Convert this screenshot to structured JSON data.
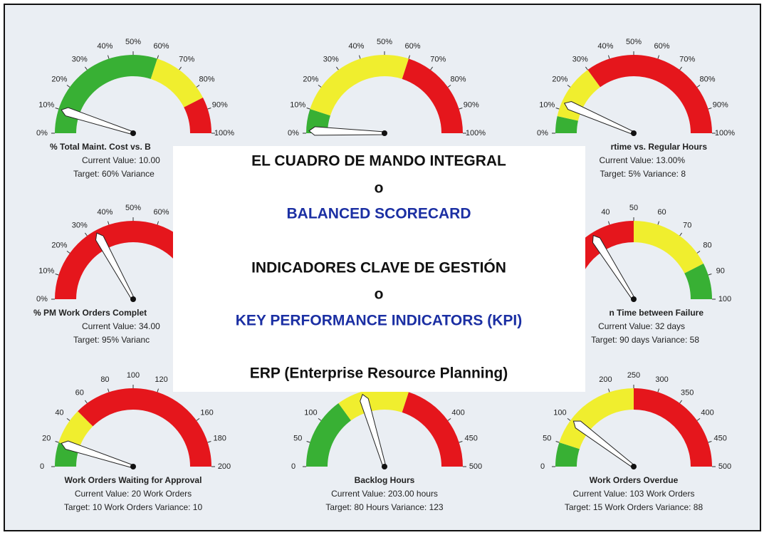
{
  "chart_data": [
    {
      "type": "gauge",
      "lim": [
        0,
        100
      ],
      "ticks": [
        {
          "value": 0,
          "label": "0%"
        },
        {
          "value": 10,
          "label": "10%"
        },
        {
          "value": 20,
          "label": "20%"
        },
        {
          "value": 30,
          "label": "30%"
        },
        {
          "value": 40,
          "label": "40%"
        },
        {
          "value": 50,
          "label": "50%"
        },
        {
          "value": 60,
          "label": "60%"
        },
        {
          "value": 70,
          "label": "70%"
        },
        {
          "value": 80,
          "label": "80%"
        },
        {
          "value": 90,
          "label": "90%"
        },
        {
          "value": 100,
          "label": "100%"
        }
      ],
      "bands": [
        {
          "from": 0,
          "to": 60,
          "color": "#38b034"
        },
        {
          "from": 60,
          "to": 85,
          "color": "#f0ee2e"
        },
        {
          "from": 85,
          "to": 100,
          "color": "#e5161c"
        }
      ],
      "value": 10,
      "captions": [
        "% Total Maint. Cost vs. B",
        "Current Value: 10.00",
        "Target: 60%  Variance"
      ]
    },
    {
      "type": "gauge",
      "lim": [
        0,
        100
      ],
      "ticks": [
        {
          "value": 0,
          "label": "0%"
        },
        {
          "value": 10,
          "label": "10%"
        },
        {
          "value": 20,
          "label": "20%"
        },
        {
          "value": 30,
          "label": "30%"
        },
        {
          "value": 40,
          "label": "40%"
        },
        {
          "value": 50,
          "label": "50%"
        },
        {
          "value": 60,
          "label": "60%"
        },
        {
          "value": 70,
          "label": "70%"
        },
        {
          "value": 80,
          "label": "80%"
        },
        {
          "value": 90,
          "label": "90%"
        },
        {
          "value": 100,
          "label": "100%"
        }
      ],
      "bands": [
        {
          "from": 0,
          "to": 10,
          "color": "#38b034"
        },
        {
          "from": 10,
          "to": 60,
          "color": "#f0ee2e"
        },
        {
          "from": 60,
          "to": 100,
          "color": "#e5161c"
        }
      ],
      "value": 1,
      "captions": []
    },
    {
      "type": "gauge",
      "lim": [
        0,
        100
      ],
      "ticks": [
        {
          "value": 0,
          "label": "0%"
        },
        {
          "value": 10,
          "label": "10%"
        },
        {
          "value": 20,
          "label": "20%"
        },
        {
          "value": 30,
          "label": "30%"
        },
        {
          "value": 40,
          "label": "40%"
        },
        {
          "value": 50,
          "label": "50%"
        },
        {
          "value": 60,
          "label": "60%"
        },
        {
          "value": 70,
          "label": "70%"
        },
        {
          "value": 80,
          "label": "80%"
        },
        {
          "value": 90,
          "label": "90%"
        },
        {
          "value": 100,
          "label": "100%"
        }
      ],
      "bands": [
        {
          "from": 0,
          "to": 7,
          "color": "#38b034"
        },
        {
          "from": 7,
          "to": 30,
          "color": "#f0ee2e"
        },
        {
          "from": 30,
          "to": 100,
          "color": "#e5161c"
        }
      ],
      "value": 13,
      "captions": [
        "rtime vs. Regular Hours",
        "Current Value: 13.00%",
        "Target: 5%  Variance: 8"
      ]
    },
    {
      "type": "gauge",
      "lim": [
        0,
        100
      ],
      "ticks": [
        {
          "value": 0,
          "label": "0%"
        },
        {
          "value": 10,
          "label": "10%"
        },
        {
          "value": 20,
          "label": "20%"
        },
        {
          "value": 30,
          "label": "30%"
        },
        {
          "value": 40,
          "label": "40%"
        },
        {
          "value": 50,
          "label": "50%"
        },
        {
          "value": 60,
          "label": "60%"
        }
      ],
      "bands": [
        {
          "from": 0,
          "to": 80,
          "color": "#e5161c"
        },
        {
          "from": 80,
          "to": 95,
          "color": "#f0ee2e"
        },
        {
          "from": 95,
          "to": 100,
          "color": "#38b034"
        }
      ],
      "value": 34,
      "captions": [
        "% PM Work Orders Complet",
        "Current Value: 34.00",
        "Target: 95%  Varianc"
      ]
    },
    {
      "type": "gauge",
      "lim": [
        0,
        100
      ],
      "ticks": [
        40,
        50,
        60,
        70,
        80,
        90,
        100
      ],
      "bands": [
        {
          "from": 0,
          "to": 50,
          "color": "#e5161c"
        },
        {
          "from": 50,
          "to": 85,
          "color": "#f0ee2e"
        },
        {
          "from": 85,
          "to": 100,
          "color": "#38b034"
        }
      ],
      "value": 32,
      "captions": [
        "n Time between Failure",
        "Current Value: 32 days",
        "Target: 90 days  Variance: 58"
      ]
    },
    {
      "type": "gauge",
      "lim": [
        0,
        200
      ],
      "ticks": [
        0,
        20,
        40,
        60,
        80,
        100,
        120,
        160,
        180,
        200
      ],
      "bands": [
        {
          "from": 0,
          "to": 20,
          "color": "#38b034"
        },
        {
          "from": 20,
          "to": 50,
          "color": "#f0ee2e"
        },
        {
          "from": 50,
          "to": 200,
          "color": "#e5161c"
        }
      ],
      "value": 20,
      "captions": [
        "Work Orders Waiting for Approval",
        "Current Value: 20 Work Orders",
        "Target: 10 Work Orders  Variance: 10"
      ]
    },
    {
      "type": "gauge",
      "lim": [
        0,
        500
      ],
      "ticks": [
        0,
        50,
        100,
        400,
        450,
        500
      ],
      "bands": [
        {
          "from": 0,
          "to": 150,
          "color": "#38b034"
        },
        {
          "from": 150,
          "to": 300,
          "color": "#f0ee2e"
        },
        {
          "from": 300,
          "to": 500,
          "color": "#e5161c"
        }
      ],
      "value": 203,
      "captions": [
        "Backlog Hours",
        "Current Value: 203.00 hours",
        "Target: 80 Hours  Variance: 123"
      ]
    },
    {
      "type": "gauge",
      "lim": [
        0,
        500
      ],
      "ticks": [
        0,
        50,
        100,
        200,
        250,
        300,
        350,
        400,
        450,
        500
      ],
      "bands": [
        {
          "from": 0,
          "to": 50,
          "color": "#38b034"
        },
        {
          "from": 50,
          "to": 250,
          "color": "#f0ee2e"
        },
        {
          "from": 250,
          "to": 500,
          "color": "#e5161c"
        }
      ],
      "value": 103,
      "captions": [
        "Work Orders Overdue",
        "Current Value: 103 Work Orders",
        "Target: 15 Work Orders  Variance: 88"
      ]
    }
  ],
  "overlay": {
    "lines": [
      {
        "text": "EL CUADRO DE MANDO INTEGRAL",
        "color": "#111111"
      },
      {
        "text": "o",
        "color": "#111111"
      },
      {
        "text": "BALANCED SCORECARD",
        "color": "#1b2fa3"
      },
      {
        "text": "INDICADORES CLAVE DE GESTIÓN",
        "color": "#111111"
      },
      {
        "text": "o",
        "color": "#111111"
      },
      {
        "text": "KEY PERFORMANCE INDICATORS (KPI)",
        "color": "#1b2fa3"
      },
      {
        "text": "ERP (Enterprise Resource Planning)",
        "color": "#111111"
      }
    ]
  }
}
